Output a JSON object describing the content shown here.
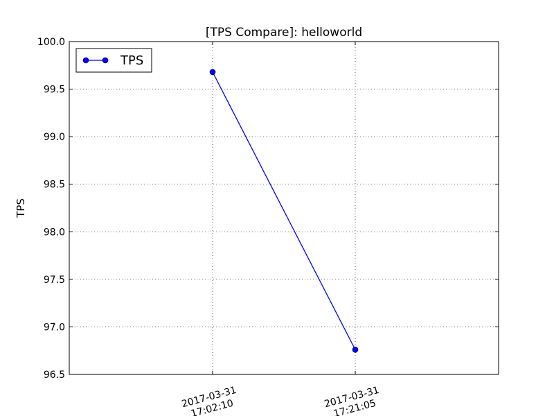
{
  "chart_data": {
    "type": "line",
    "title": "[TPS Compare]: helloworld",
    "xlabel": "",
    "ylabel": "TPS",
    "x": [
      [
        "2017-03-31",
        "17:02:10"
      ],
      [
        "2017-03-31",
        "17:21:05"
      ]
    ],
    "series": [
      {
        "name": "TPS",
        "values": [
          99.68,
          96.76
        ],
        "color": "#0000ff",
        "marker": "circle"
      }
    ],
    "ylim": [
      96.5,
      100.0
    ],
    "yticks": [
      "96.5",
      "97.0",
      "97.5",
      "98.0",
      "98.5",
      "99.0",
      "99.5",
      "100.0"
    ],
    "grid": true,
    "legend_position": "top-left"
  }
}
